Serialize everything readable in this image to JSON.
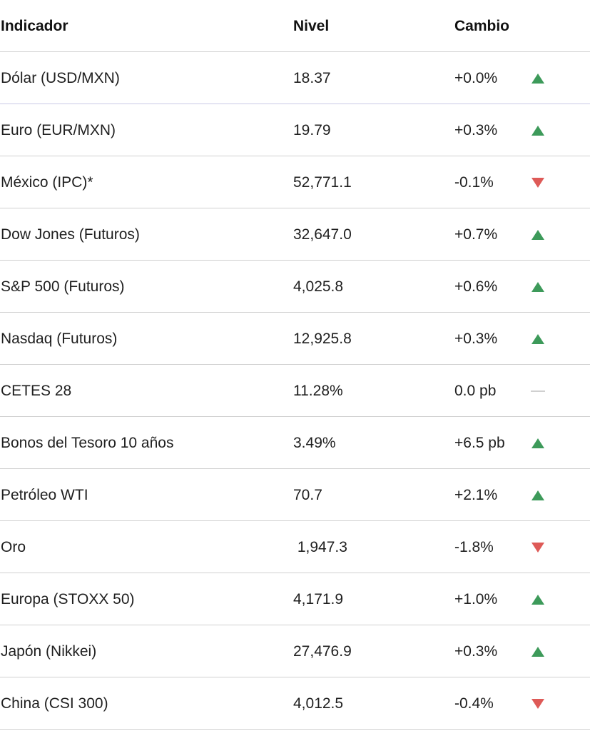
{
  "header": {
    "indicator": "Indicador",
    "level": "Nivel",
    "change": "Cambio"
  },
  "colors": {
    "up": "#3d9a5a",
    "down": "#de5a57",
    "flat": "#b5b5b5"
  },
  "rows": [
    {
      "indicator": "Dólar (USD/MXN)",
      "level": "18.37",
      "change": "+0.0%",
      "direction": "up"
    },
    {
      "indicator": "Euro (EUR/MXN)",
      "level": "19.79",
      "change": "+0.3%",
      "direction": "up"
    },
    {
      "indicator": "México (IPC)*",
      "level": "52,771.1",
      "change": "-0.1%",
      "direction": "down"
    },
    {
      "indicator": "Dow Jones (Futuros)",
      "level": "32,647.0",
      "change": "+0.7%",
      "direction": "up"
    },
    {
      "indicator": "S&P 500 (Futuros)",
      "level": "4,025.8",
      "change": "+0.6%",
      "direction": "up"
    },
    {
      "indicator": "Nasdaq (Futuros)",
      "level": "12,925.8",
      "change": "+0.3%",
      "direction": "up"
    },
    {
      "indicator": "CETES 28",
      "level": "11.28%",
      "change": "0.0 pb",
      "direction": "flat"
    },
    {
      "indicator": "Bonos del Tesoro 10 años",
      "level": "3.49%",
      "change": "+6.5 pb",
      "direction": "up"
    },
    {
      "indicator": "Petróleo WTI",
      "level": "70.7",
      "change": "+2.1%",
      "direction": "up"
    },
    {
      "indicator": "Oro",
      "level": " 1,947.3",
      "change": "-1.8%",
      "direction": "down"
    },
    {
      "indicator": "Europa (STOXX 50)",
      "level": "4,171.9",
      "change": "+1.0%",
      "direction": "up"
    },
    {
      "indicator": "Japón (Nikkei)",
      "level": "27,476.9",
      "change": "+0.3%",
      "direction": "up"
    },
    {
      "indicator": "China (CSI 300)",
      "level": "4,012.5",
      "change": "-0.4%",
      "direction": "down"
    }
  ]
}
